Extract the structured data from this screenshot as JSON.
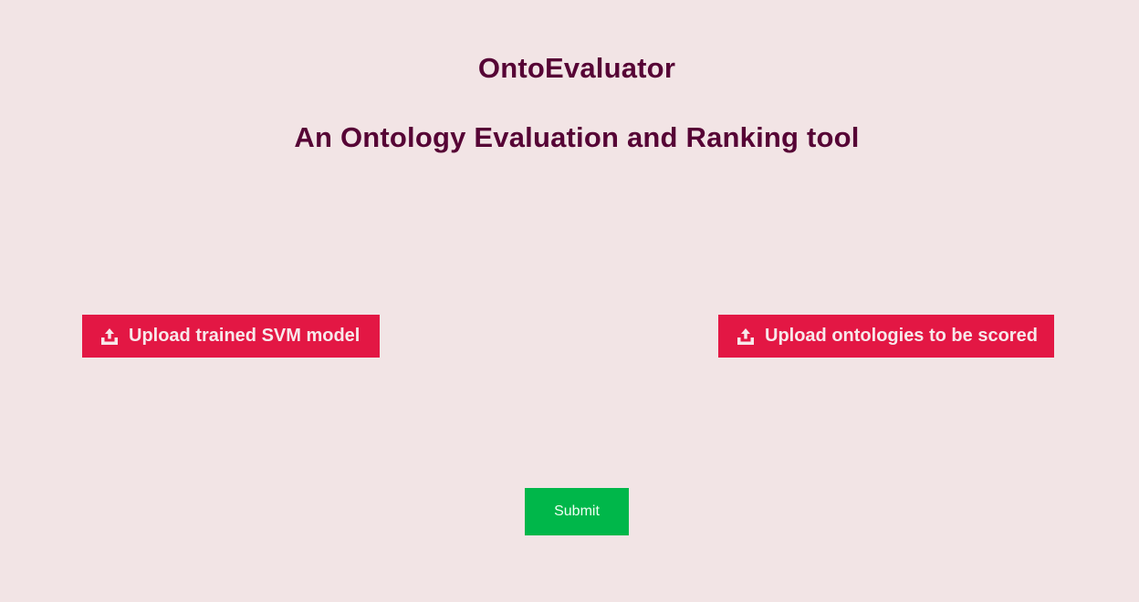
{
  "header": {
    "title": "OntoEvaluator",
    "subtitle": "An Ontology Evaluation and Ranking tool"
  },
  "uploads": {
    "svm_model_label": "Upload trained SVM model",
    "ontologies_label": "Upload ontologies to be scored",
    "icon": "upload-tray-icon"
  },
  "actions": {
    "submit_label": "Submit"
  },
  "colors": {
    "background": "#f2e4e5",
    "heading": "#560335",
    "upload_button": "#e31744",
    "submit_button": "#00b74a"
  }
}
